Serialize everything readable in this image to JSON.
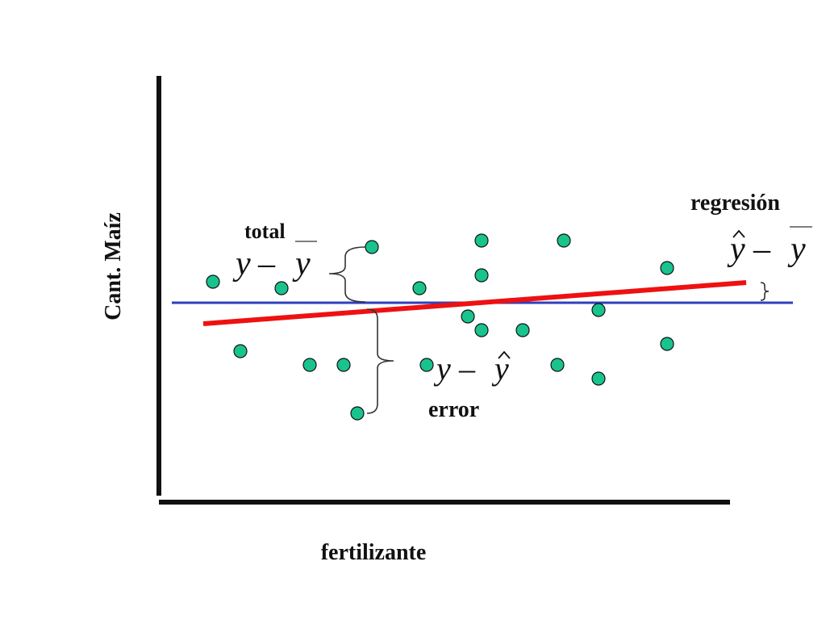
{
  "labels": {
    "y_axis": "Cant. Maíz",
    "x_axis": "fertilizante",
    "total": "total",
    "regression": "regresión",
    "error": "error"
  },
  "formulas": {
    "total": {
      "left": "y",
      "op": "–",
      "right": "y",
      "right_accent": "bar"
    },
    "regression": {
      "left": "y",
      "left_accent": "hat",
      "op": "–",
      "right": "y",
      "right_accent": "bar"
    },
    "error": {
      "left": "y",
      "op": "–",
      "right": "y",
      "right_accent": "hat"
    }
  },
  "colors": {
    "axes": "#111111",
    "mean_line": "#2f3fbf",
    "regression_line": "#ee1111",
    "point_fill": "#19c38d",
    "point_stroke": "#111111",
    "brace": "#333333"
  }
}
